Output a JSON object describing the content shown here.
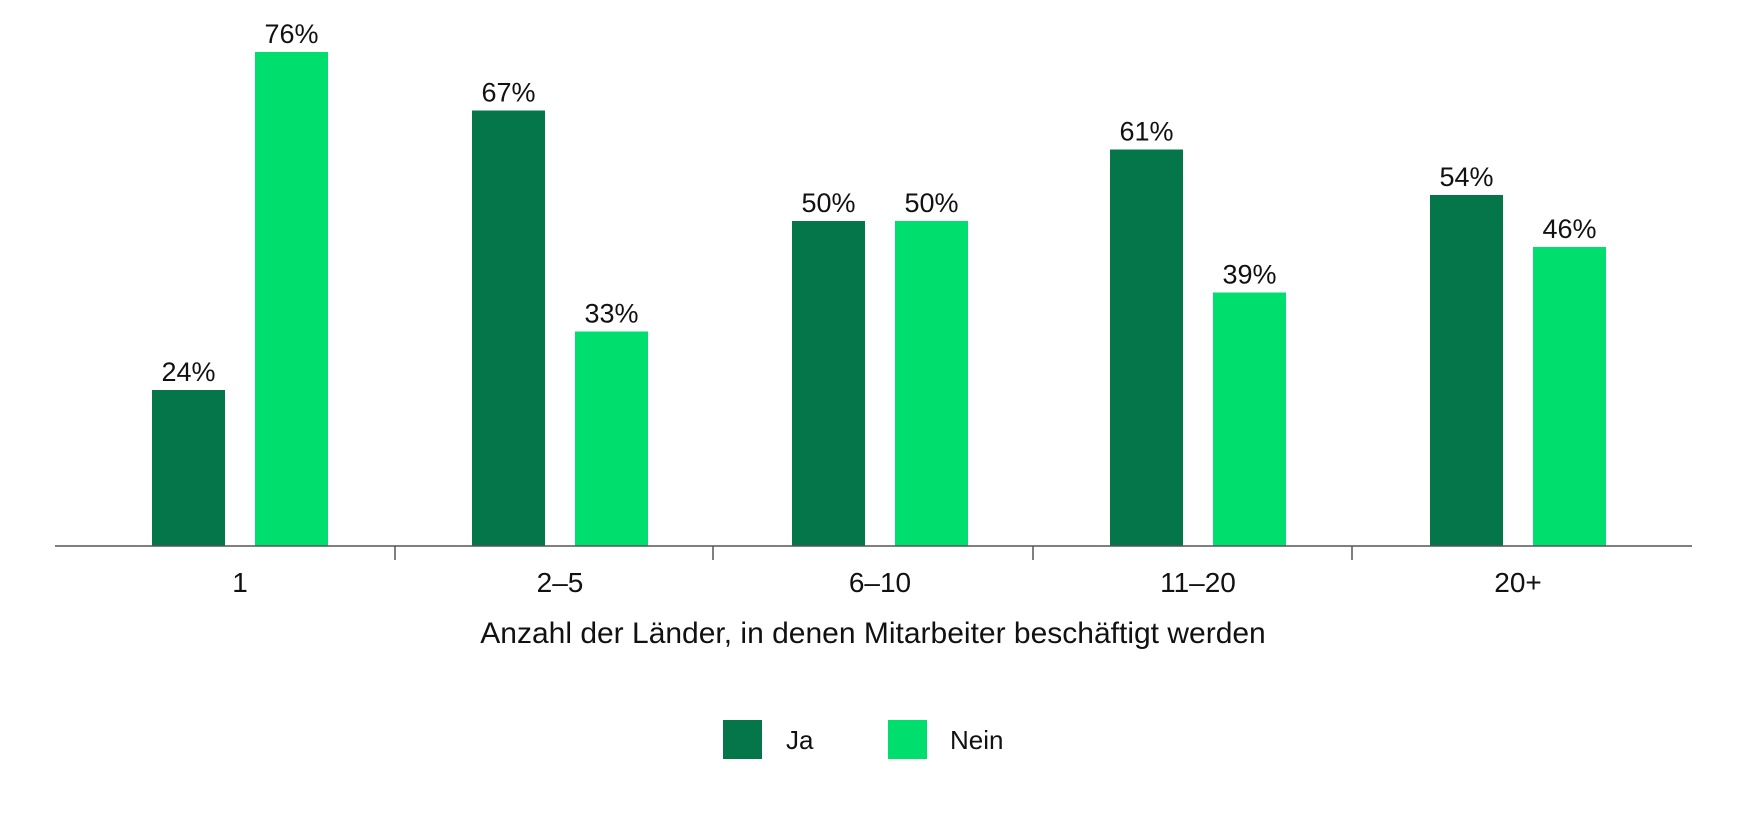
{
  "chart_data": {
    "type": "bar",
    "title": "",
    "xlabel": "Anzahl der Länder, in denen Mitarbeiter beschäftigt werden",
    "ylabel": "",
    "categories": [
      "1",
      "2–5",
      "6–10",
      "11–20",
      "20+"
    ],
    "series": [
      {
        "name": "Ja",
        "color": "#05764a",
        "values": [
          24,
          67,
          50,
          61,
          54
        ],
        "labels": [
          "24%",
          "67%",
          "50%",
          "61%",
          "54%"
        ]
      },
      {
        "name": "Nein",
        "color": "#00de6e",
        "values": [
          76,
          33,
          50,
          39,
          46
        ],
        "labels": [
          "76%",
          "33%",
          "50%",
          "39%",
          "46%"
        ]
      }
    ],
    "ylim": [
      0,
      76
    ],
    "grid": false,
    "legend": "bottom-center",
    "axis_color": "#555555"
  }
}
